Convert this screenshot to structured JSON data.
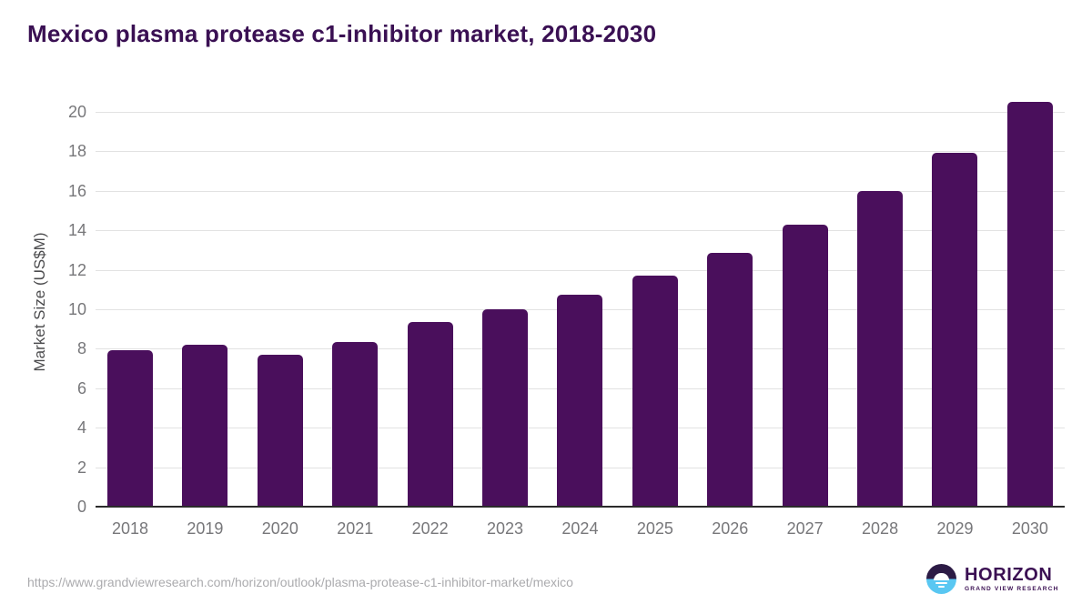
{
  "chart_data": {
    "type": "bar",
    "title": "Mexico plasma protease c1-inhibitor market, 2018-2030",
    "categories": [
      "2018",
      "2019",
      "2020",
      "2021",
      "2022",
      "2023",
      "2024",
      "2025",
      "2026",
      "2027",
      "2028",
      "2029",
      "2030"
    ],
    "values": [
      7.95,
      8.2,
      7.7,
      8.35,
      9.35,
      10.0,
      10.75,
      11.7,
      12.85,
      14.3,
      16.0,
      17.95,
      20.5
    ],
    "xlabel": "",
    "ylabel": "Market Size (US$M)",
    "ylim": [
      0,
      20.7
    ],
    "yticks": [
      0,
      2,
      4,
      6,
      8,
      10,
      12,
      14,
      16,
      18,
      20
    ],
    "grid": "horizontal",
    "legend_position": "none",
    "bar_color": "#4a0f5c"
  },
  "colors": {
    "title_text": "#3a1053",
    "bar": "#4a0f5c",
    "tick_text": "#77777a",
    "gridline": "#e2e2e2",
    "axis_line": "#2b2b2b",
    "url_text": "#ababae",
    "logo_purple": "#3b1053",
    "logo_circle_dark": "#2c1b45",
    "logo_circle_blue": "#59c7f2"
  },
  "footer": {
    "url": "https://www.grandviewresearch.com/horizon/outlook/plasma-protease-c1-inhibitor-market/mexico",
    "logo_name": "HORIZON",
    "logo_subtitle": "GRAND VIEW RESEARCH"
  }
}
